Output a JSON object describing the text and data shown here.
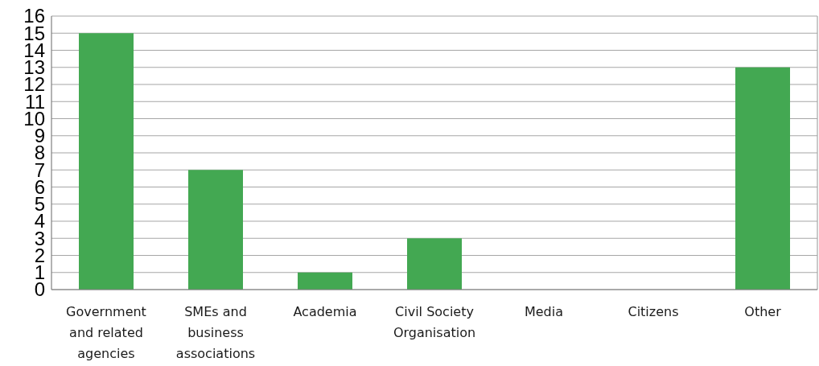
{
  "chart_data": {
    "type": "bar",
    "categories": [
      "Government and related agencies",
      "SMEs and business associations",
      "Academia",
      "Civil Society Organisation",
      "Media",
      "Citizens",
      "Other"
    ],
    "values": [
      15,
      7,
      1,
      3,
      0,
      0,
      13
    ],
    "color": "#43a852",
    "ylim": [
      0,
      16
    ],
    "yticks": [
      0,
      1,
      2,
      3,
      4,
      5,
      6,
      7,
      8,
      9,
      10,
      11,
      12,
      13,
      14,
      15,
      16
    ],
    "grid": "y"
  }
}
